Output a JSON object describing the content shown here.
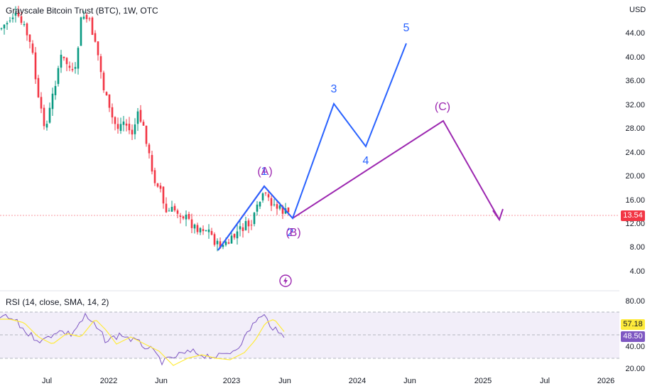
{
  "header": {
    "title": "Grayscale Bitcoin Trust (BTC), 1W, OTC",
    "currency": "USD"
  },
  "rsi": {
    "title": "RSI (14, close, SMA, 14, 2)",
    "rsi_value": "48.50",
    "ma_value": "57.18"
  },
  "price": {
    "last": "13.54"
  },
  "axes": {
    "price_ticks": [
      "44.00",
      "40.00",
      "36.00",
      "32.00",
      "28.00",
      "24.00",
      "20.00",
      "16.00",
      "12.00",
      "8.00",
      "4.00"
    ],
    "rsi_ticks": [
      "80.00",
      "40.00",
      "20.00"
    ],
    "time_ticks": [
      "Jul",
      "2022",
      "Jun",
      "2023",
      "Jun",
      "2024",
      "Jun",
      "2025",
      "Jul",
      "2026"
    ]
  },
  "waves": {
    "blue": [
      "1",
      "2",
      "3",
      "4",
      "5"
    ],
    "purple": [
      "(A)",
      "(B)",
      "(C)"
    ]
  },
  "colors": {
    "up": "#089981",
    "down": "#f23645",
    "impulse": "#2962ff",
    "corrective": "#9c27b0",
    "rsi_line": "#7e57c2",
    "rsi_ma": "#ffeb3b"
  },
  "icons": {
    "lightning": "lightning-icon"
  }
}
